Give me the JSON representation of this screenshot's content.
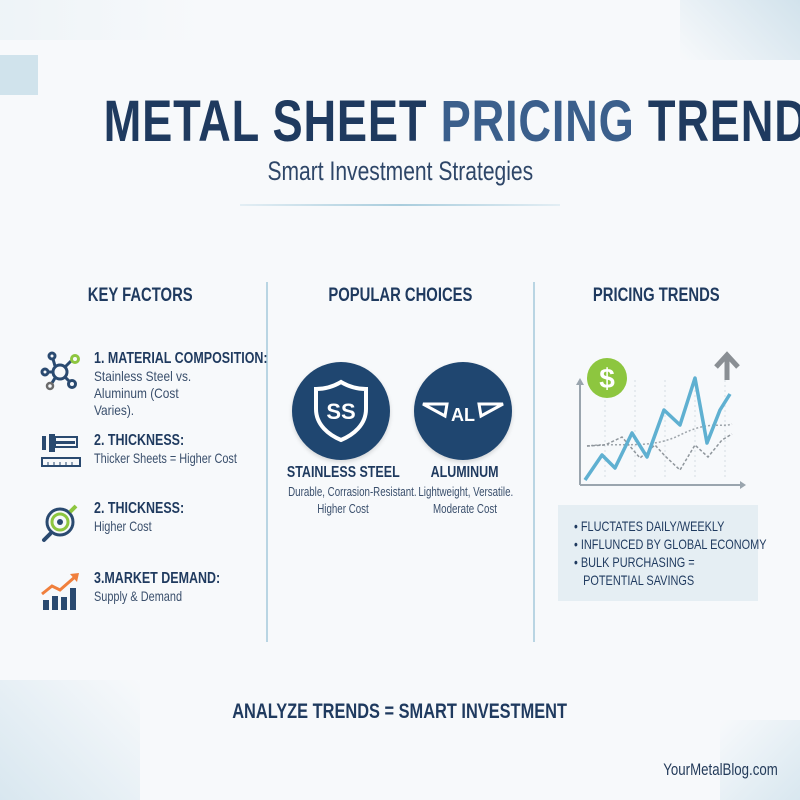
{
  "header": {
    "title_part1": "METAL SHEET ",
    "title_part2": "PRICING",
    "title_part3": " TRENDS",
    "subtitle": "Smart Investment Strategies"
  },
  "key_factors": {
    "heading": "KEY FACTORS",
    "items": [
      {
        "icon": "network-nodes-icon",
        "title": "1. MATERIAL COMPOSITION:",
        "desc": "Stainless Steel vs. Aluminum (Cost Varies)."
      },
      {
        "icon": "caliper-ruler-icon",
        "title": "2. THICKNESS:",
        "desc": "Thicker Sheets = Higher Cost"
      },
      {
        "icon": "magnifier-target-icon",
        "title": "2. THICKNESS:",
        "desc": "Higher Cost"
      },
      {
        "icon": "bar-chart-growth-icon",
        "title": "3.MARKET DEMAND:",
        "desc": "Supply & Demand"
      }
    ]
  },
  "popular_choices": {
    "heading": "POPULAR CHOICES",
    "items": [
      {
        "badge": "SS",
        "name": "STAINLESS STEEL",
        "desc_line1": "Durable, Corrasion-Resistant.",
        "desc_line2": "Higher Cost"
      },
      {
        "badge": "AL",
        "name": "ALUMINUM",
        "desc_line1": "Lightweight, Versatile.",
        "desc_line2": "Moderate Cost"
      }
    ]
  },
  "pricing_trends": {
    "heading": "PRICING TRENDS",
    "dollar": "$",
    "bullets": [
      "FLUCTATES DAILY/WEEKLY",
      "INFLUNCED BY GLOBAL ECONOMY",
      "BULK PURCHASING =",
      "POTENTIAL SAVINGS"
    ]
  },
  "footer": {
    "tagline": "ANALYZE TRENDS = SMART INVESTMENT",
    "site": "YourMetalBlog.com"
  },
  "colors": {
    "navy": "#1f3a5f",
    "accent_blue": "#5fb0d1",
    "green": "#8dc63f",
    "orange": "#f07f3c"
  }
}
